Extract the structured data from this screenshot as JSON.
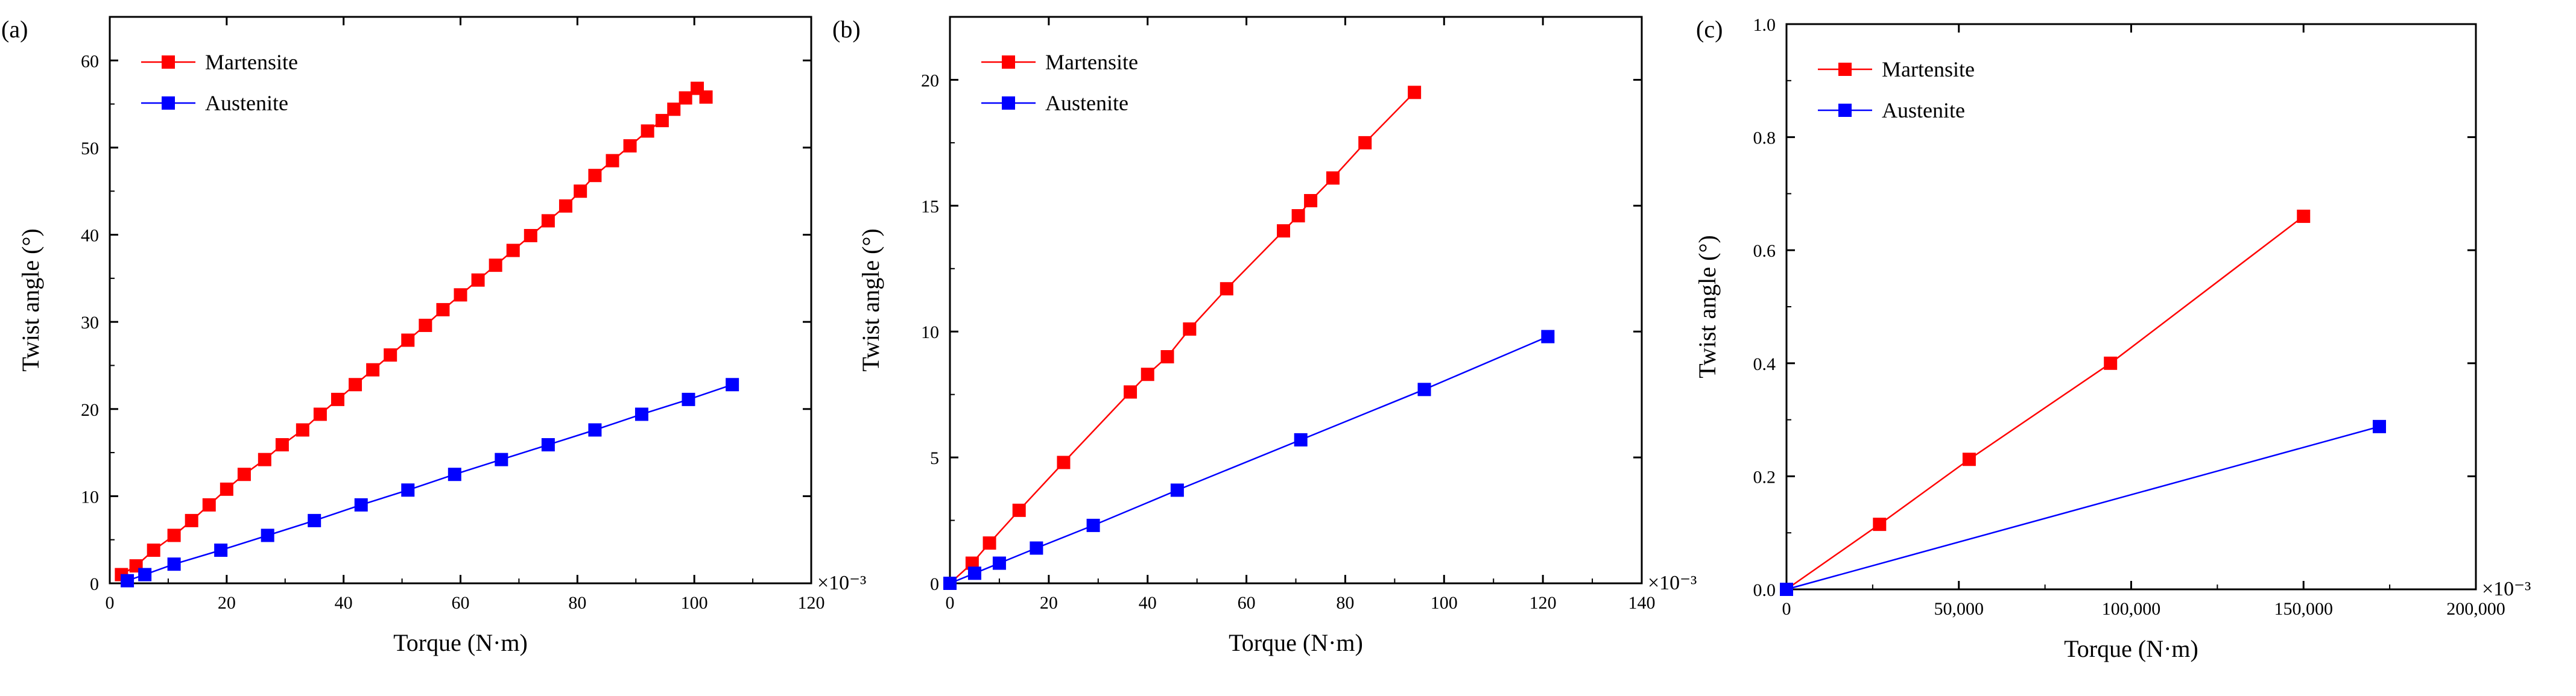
{
  "colors": {
    "martensite": "#FF0000",
    "austenite": "#0000FF",
    "axis": "#000000"
  },
  "chart_data": [
    {
      "panel_label": "(a)",
      "type": "line",
      "xlabel": "Torque (N·m)",
      "ylabel": "Twist angle (°)",
      "x_exponent": "×10⁻³",
      "xlim": [
        0,
        120
      ],
      "ylim": [
        0,
        65
      ],
      "x_ticks": [
        0,
        20,
        40,
        60,
        80,
        100,
        120
      ],
      "y_ticks": [
        0,
        10,
        20,
        30,
        40,
        50,
        60
      ],
      "x_tick_labels": [
        "0",
        "20",
        "40",
        "60",
        "80",
        "100",
        "120"
      ],
      "y_tick_labels": [
        "0",
        "10",
        "20",
        "30",
        "40",
        "50",
        "60"
      ],
      "legend": [
        "Martensite",
        "Austenite"
      ],
      "series": [
        {
          "name": "Martensite",
          "x": [
            2,
            4.5,
            7.5,
            11,
            14,
            17,
            20,
            23,
            26.5,
            29.5,
            33,
            36,
            39,
            42,
            45,
            48,
            51,
            54,
            57,
            60,
            63,
            66,
            69,
            72,
            75,
            78,
            80.5,
            83,
            86,
            89,
            92,
            94.5,
            96.5,
            98.5,
            100.5,
            102
          ],
          "y": [
            1,
            2,
            3.8,
            5.5,
            7.2,
            9,
            10.8,
            12.5,
            14.2,
            15.9,
            17.6,
            19.4,
            21.1,
            22.8,
            24.5,
            26.2,
            27.9,
            29.6,
            31.4,
            33.1,
            34.8,
            36.5,
            38.2,
            39.9,
            41.6,
            43.3,
            45,
            46.8,
            48.5,
            50.2,
            51.9,
            53.1,
            54.4,
            55.7,
            56.8,
            55.8
          ]
        },
        {
          "name": "Austenite",
          "x": [
            3,
            6,
            11,
            19,
            27,
            35,
            43,
            51,
            59,
            67,
            75,
            83,
            91,
            99,
            106.5
          ],
          "y": [
            0.3,
            1,
            2.2,
            3.8,
            5.5,
            7.2,
            9,
            10.7,
            12.5,
            14.2,
            15.9,
            17.6,
            19.4,
            21.1,
            22.8
          ]
        }
      ]
    },
    {
      "panel_label": "(b)",
      "type": "line",
      "xlabel": "Torque (N·m)",
      "ylabel": "Twist angle (°)",
      "x_exponent": "×10⁻³",
      "xlim": [
        0,
        140
      ],
      "ylim": [
        0,
        22.5
      ],
      "x_ticks": [
        0,
        20,
        40,
        60,
        80,
        100,
        120,
        140
      ],
      "y_ticks": [
        0,
        5,
        10,
        15,
        20
      ],
      "x_tick_labels": [
        "0",
        "20",
        "40",
        "60",
        "80",
        "100",
        "120",
        "140"
      ],
      "y_tick_labels": [
        "0",
        "5",
        "10",
        "15",
        "20"
      ],
      "legend": [
        "Martensite",
        "Austenite"
      ],
      "series": [
        {
          "name": "Martensite",
          "x": [
            0,
            4.5,
            8,
            14,
            23,
            36.5,
            40,
            44,
            48.5,
            56,
            67.5,
            70.5,
            73,
            77.5,
            84,
            94
          ],
          "y": [
            0,
            0.8,
            1.6,
            2.9,
            4.8,
            7.6,
            8.3,
            9,
            10.1,
            11.7,
            14,
            14.6,
            15.2,
            16.1,
            17.5,
            19.5
          ]
        },
        {
          "name": "Austenite",
          "x": [
            0,
            5,
            10,
            17.5,
            29,
            46,
            71,
            96,
            121
          ],
          "y": [
            0,
            0.4,
            0.8,
            1.4,
            2.3,
            3.7,
            5.7,
            7.7,
            9.8
          ]
        }
      ]
    },
    {
      "panel_label": "(c)",
      "type": "line",
      "xlabel": "Torque (N·m)",
      "ylabel": "Twist angle (°)",
      "x_exponent": "×10⁻³",
      "xlim": [
        0,
        200000
      ],
      "ylim": [
        0,
        1.0
      ],
      "x_ticks": [
        0,
        50000,
        100000,
        150000,
        200000
      ],
      "y_ticks": [
        0,
        0.2,
        0.4,
        0.6,
        0.8,
        1.0
      ],
      "x_tick_labels": [
        "0",
        "50,000",
        "100,000",
        "150,000",
        "200,000"
      ],
      "y_tick_labels": [
        "0.0",
        "0.2",
        "0.4",
        "0.6",
        "0.8",
        "1.0"
      ],
      "legend": [
        "Martensite",
        "Austenite"
      ],
      "series": [
        {
          "name": "Martensite",
          "x": [
            0,
            27000,
            53000,
            94000,
            150000
          ],
          "y": [
            0,
            0.115,
            0.23,
            0.4,
            0.66
          ]
        },
        {
          "name": "Austenite",
          "x": [
            0,
            172000
          ],
          "y": [
            0,
            0.288
          ]
        }
      ]
    }
  ]
}
